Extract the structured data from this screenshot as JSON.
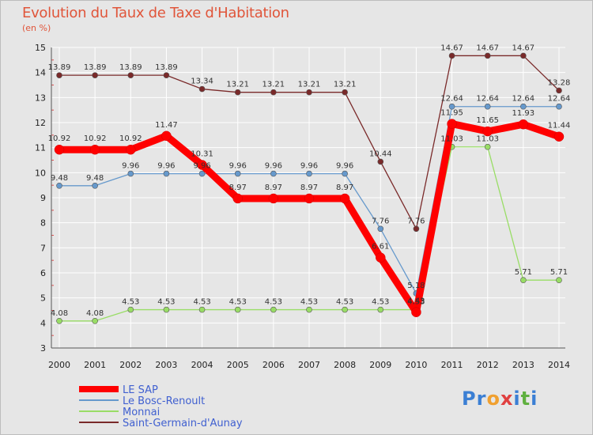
{
  "title": "Evolution du Taux de Taxe d'Habitation",
  "unit": "(en %)",
  "logo": {
    "text": "Proxiti",
    "letters": [
      {
        "ch": "P",
        "color": "#3b7fd4"
      },
      {
        "ch": "r",
        "color": "#3b7fd4"
      },
      {
        "ch": "o",
        "color": "#f0a030"
      },
      {
        "ch": "x",
        "color": "#e04040"
      },
      {
        "ch": "i",
        "color": "#3b7fd4"
      },
      {
        "ch": "t",
        "color": "#60b040"
      },
      {
        "ch": "i",
        "color": "#3b7fd4"
      }
    ]
  },
  "chart_data": {
    "type": "line",
    "x": [
      "2000",
      "2001",
      "2002",
      "2003",
      "2004",
      "2005",
      "2006",
      "2007",
      "2008",
      "2009",
      "2010",
      "2011",
      "2012",
      "2013",
      "2014"
    ],
    "ylim": [
      3,
      15
    ],
    "yticks": [
      3,
      4,
      5,
      6,
      7,
      8,
      9,
      10,
      11,
      12,
      13,
      14,
      15
    ],
    "grid": true,
    "legend": "bottom-left",
    "series": [
      {
        "name": "LE SAP",
        "color": "#ff0000",
        "values": [
          10.92,
          10.92,
          10.92,
          11.47,
          10.31,
          8.97,
          8.97,
          8.97,
          8.97,
          6.61,
          4.43,
          11.95,
          11.65,
          11.93,
          11.44
        ],
        "labels": [
          "10.92",
          "10.92",
          "10.92",
          "11.47",
          "10.31",
          "8.97",
          "8.97",
          "8.97",
          "8.97",
          "6.61",
          "4.43",
          "11.95",
          "11.65",
          "11.93",
          "11.44"
        ]
      },
      {
        "name": "Le Bosc-Renoult",
        "color": "#6699cc",
        "values": [
          9.48,
          9.48,
          9.96,
          9.96,
          9.96,
          9.96,
          9.96,
          9.96,
          9.96,
          7.76,
          5.18,
          12.64,
          12.64,
          12.64,
          12.64
        ],
        "labels": [
          "9.48",
          "9.48",
          "9.96",
          "9.96",
          "9.96",
          "9.96",
          "9.96",
          "9.96",
          "9.96",
          "7.76",
          "5.18",
          "12.64",
          "12.64",
          "12.64",
          "12.64"
        ]
      },
      {
        "name": "Monnai",
        "color": "#99dd66",
        "values": [
          4.08,
          4.08,
          4.53,
          4.53,
          4.53,
          4.53,
          4.53,
          4.53,
          4.53,
          4.53,
          4.53,
          11.03,
          11.03,
          5.71,
          5.71
        ],
        "labels": [
          "4.08",
          "4.08",
          "4.53",
          "4.53",
          "4.53",
          "4.53",
          "4.53",
          "4.53",
          "4.53",
          "4.53",
          "4.53",
          "11.03",
          "11.03",
          "5.71",
          "5.71"
        ]
      },
      {
        "name": "Saint-Germain-d'Aunay",
        "color": "#7a2a2a",
        "values": [
          13.89,
          13.89,
          13.89,
          13.89,
          13.34,
          13.21,
          13.21,
          13.21,
          13.21,
          10.44,
          7.76,
          14.67,
          14.67,
          14.67,
          13.28
        ],
        "labels": [
          "13.89",
          "13.89",
          "13.89",
          "13.89",
          "13.34",
          "13.21",
          "13.21",
          "13.21",
          "13.21",
          "10.44",
          "7.76",
          "14.67",
          "14.67",
          "14.67",
          "13.28"
        ]
      }
    ]
  }
}
